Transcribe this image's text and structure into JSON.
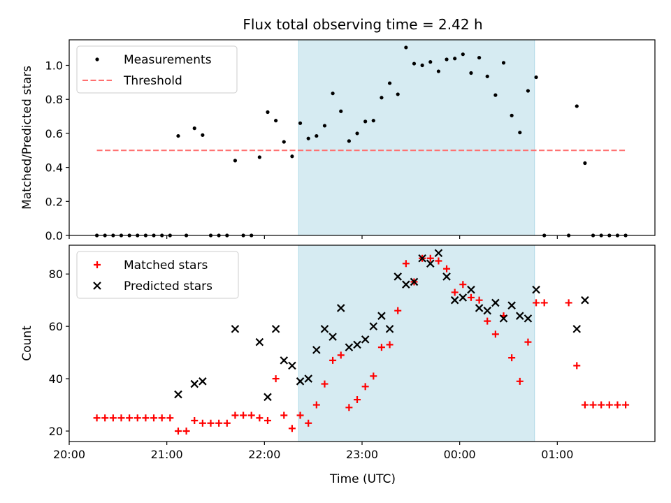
{
  "figure": {
    "title": "Flux total observing time = 2.42 h",
    "xlabel": "Time (UTC)"
  },
  "chart_data": [
    {
      "type": "scatter",
      "panel": "top",
      "ylabel": "Matched/Predicted stars",
      "ylim": [
        0,
        1.15
      ],
      "xlim": [
        "20:00",
        "02:00"
      ],
      "grid": false,
      "legend_position": "top-left",
      "x_ticks": [
        "20:00",
        "21:00",
        "22:00",
        "23:00",
        "00:00",
        "01:00"
      ],
      "y_ticks": [
        "0.0",
        "0.2",
        "0.4",
        "0.6",
        "0.8",
        "1.0"
      ],
      "shaded_interval": {
        "start": "22:21",
        "end": "00:46",
        "color": "#add8e6"
      },
      "series": [
        {
          "name": "Measurements",
          "marker": "dot",
          "color": "#000000",
          "x": [
            "20:17",
            "20:22",
            "20:27",
            "20:32",
            "20:37",
            "20:42",
            "20:47",
            "20:52",
            "20:57",
            "21:02",
            "21:07",
            "21:12",
            "21:17",
            "21:22",
            "21:27",
            "21:32",
            "21:37",
            "21:42",
            "21:47",
            "21:52",
            "21:57",
            "22:02",
            "22:07",
            "22:12",
            "22:17",
            "22:22",
            "22:27",
            "22:32",
            "22:37",
            "22:42",
            "22:47",
            "22:52",
            "22:57",
            "23:02",
            "23:07",
            "23:12",
            "23:17",
            "23:22",
            "23:27",
            "23:32",
            "23:37",
            "23:42",
            "23:47",
            "23:52",
            "23:57",
            "00:02",
            "00:07",
            "00:12",
            "00:17",
            "00:22",
            "00:27",
            "00:32",
            "00:37",
            "00:42",
            "00:47",
            "00:52",
            "01:07",
            "01:12",
            "01:17",
            "01:22",
            "01:27",
            "01:32",
            "01:37",
            "01:42"
          ],
          "y": [
            0,
            0,
            0,
            0,
            0,
            0,
            0,
            0,
            0,
            0,
            0.585,
            0,
            0.63,
            0.59,
            0,
            0,
            0,
            0.44,
            0,
            0,
            0.46,
            0.725,
            0.675,
            0.55,
            0.465,
            0.66,
            0.57,
            0.585,
            0.645,
            0.835,
            0.73,
            0.555,
            0.6,
            0.67,
            0.675,
            0.81,
            0.895,
            0.83,
            1.105,
            1.01,
            1.0,
            1.02,
            0.965,
            1.035,
            1.04,
            1.065,
            0.955,
            1.045,
            0.935,
            0.825,
            1.015,
            0.705,
            0.605,
            0.85,
            0.93,
            0,
            0,
            0.76,
            0.425,
            0,
            0,
            0,
            0,
            0
          ]
        },
        {
          "name": "Threshold",
          "style": "dashed",
          "color": "#ff7070",
          "x": [
            "20:17",
            "01:42"
          ],
          "y": [
            0.5,
            0.5
          ]
        }
      ]
    },
    {
      "type": "scatter",
      "panel": "bottom",
      "ylabel": "Count",
      "ylim": [
        16,
        91
      ],
      "xlim": [
        "20:00",
        "02:00"
      ],
      "grid": false,
      "legend_position": "top-left",
      "x_ticks": [
        "20:00",
        "21:00",
        "22:00",
        "23:00",
        "00:00",
        "01:00"
      ],
      "y_ticks": [
        "20",
        "40",
        "60",
        "80"
      ],
      "shaded_interval": {
        "start": "22:21",
        "end": "00:46",
        "color": "#add8e6"
      },
      "series": [
        {
          "name": "Matched stars",
          "marker": "plus",
          "color": "#ff0000",
          "x": [
            "20:17",
            "20:22",
            "20:27",
            "20:32",
            "20:37",
            "20:42",
            "20:47",
            "20:52",
            "20:57",
            "21:02",
            "21:07",
            "21:12",
            "21:17",
            "21:22",
            "21:27",
            "21:32",
            "21:37",
            "21:42",
            "21:47",
            "21:52",
            "21:57",
            "22:02",
            "22:07",
            "22:12",
            "22:17",
            "22:22",
            "22:27",
            "22:32",
            "22:37",
            "22:42",
            "22:47",
            "22:52",
            "22:57",
            "23:02",
            "23:07",
            "23:12",
            "23:17",
            "23:22",
            "23:27",
            "23:32",
            "23:37",
            "23:42",
            "23:47",
            "23:52",
            "23:57",
            "00:02",
            "00:07",
            "00:12",
            "00:17",
            "00:22",
            "00:27",
            "00:32",
            "00:37",
            "00:42",
            "00:47",
            "00:52",
            "01:07",
            "01:12",
            "01:17",
            "01:22",
            "01:27",
            "01:32",
            "01:37",
            "01:42"
          ],
          "y": [
            25,
            25,
            25,
            25,
            25,
            25,
            25,
            25,
            25,
            25,
            20,
            20,
            24,
            23,
            23,
            23,
            23,
            26,
            26,
            26,
            25,
            24,
            40,
            26,
            21,
            26,
            23,
            30,
            38,
            47,
            49,
            29,
            32,
            37,
            41,
            52,
            53,
            66,
            84,
            77,
            86,
            86,
            85,
            82,
            73,
            76,
            71,
            70,
            62,
            57,
            64,
            48,
            39,
            54,
            69,
            69,
            69,
            45,
            30,
            30,
            30,
            30,
            30,
            30
          ]
        },
        {
          "name": "Predicted stars",
          "marker": "x",
          "color": "#000000",
          "x": [
            "21:07",
            "21:17",
            "21:22",
            "21:42",
            "21:57",
            "22:02",
            "22:07",
            "22:12",
            "22:17",
            "22:22",
            "22:27",
            "22:32",
            "22:37",
            "22:42",
            "22:47",
            "22:52",
            "22:57",
            "23:02",
            "23:07",
            "23:12",
            "23:17",
            "23:22",
            "23:27",
            "23:32",
            "23:37",
            "23:42",
            "23:47",
            "23:52",
            "23:57",
            "00:02",
            "00:07",
            "00:12",
            "00:17",
            "00:22",
            "00:27",
            "00:32",
            "00:37",
            "00:42",
            "00:47",
            "01:12",
            "01:17"
          ],
          "y": [
            34,
            38,
            39,
            59,
            54,
            33,
            59,
            47,
            45,
            39,
            40,
            51,
            59,
            56,
            67,
            52,
            53,
            55,
            60,
            64,
            59,
            79,
            76,
            77,
            86,
            84,
            88,
            79,
            70,
            71,
            74,
            67,
            66,
            69,
            63,
            68,
            64,
            63,
            74,
            59,
            70
          ]
        }
      ]
    }
  ]
}
